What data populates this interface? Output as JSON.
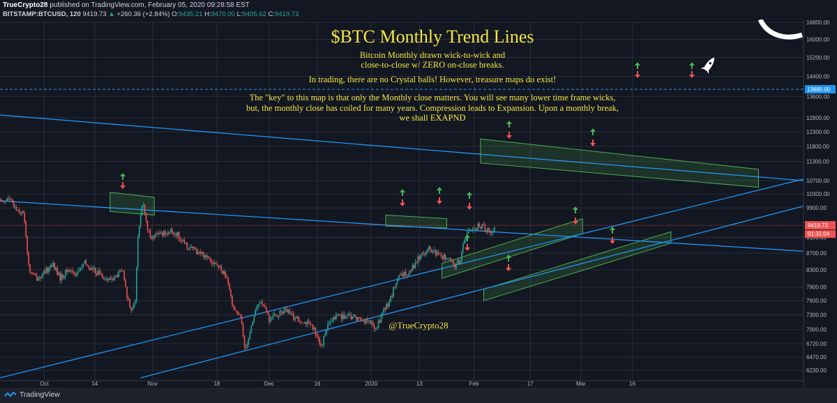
{
  "header": {
    "publisher": "TrueCrypto28",
    "published_text": "published on TradingView.com, February 05, 2020 09:28:58 EST",
    "symbol": "BITSTAMP:BTCUSD, 120",
    "last": "9419.73",
    "change": "+260.36 (+2.84%)",
    "o_label": "O:",
    "o_value": "9435.21",
    "h_label": "H:",
    "h_value": "9470.00",
    "l_label": "L:",
    "l_value": "9405.62",
    "c_label": "C:",
    "c_value": "9419.73"
  },
  "annotations": {
    "title": "$BTC Monthly Trend Lines",
    "line1": "Bitcoin Monthly drawn wick-to-wick and",
    "line2": "close-to-close w/ ZERO on-close breaks.",
    "line3": "In trading, there are no Crystal balls! However, treasure maps do exist!",
    "line4": "The \"key\" to this map is that only the Monthly close matters. You will see many lower time frame wicks,",
    "line5": "but, the monthly close has coiled for many years. Compression leads to Expansion. Upon a monthly break,",
    "line6": "we shall EXAPND",
    "handle": "@TrueCrypto28"
  },
  "footer": {
    "brand": "TradingView"
  },
  "colors": {
    "background": "#131722",
    "up": "#26a69a",
    "down": "#ef5350",
    "trendline": "#2196f3",
    "annotation": "#f4e640",
    "box": "#4caf50",
    "hline": "#2196f3"
  },
  "chart_data": {
    "type": "candlestick",
    "title": "$BTC Monthly Trend Lines",
    "y_ticks": [
      16800,
      16000,
      15200,
      14400,
      13600,
      12800,
      12300,
      11800,
      11300,
      10700,
      10300,
      9900,
      9100,
      8700,
      8300,
      7900,
      7600,
      7300,
      7000,
      6720,
      6470,
      6230
    ],
    "ylim": [
      6050,
      16800
    ],
    "scale": "log",
    "x_ticks": [
      {
        "label": "Oct",
        "t": 0.055
      },
      {
        "label": "14",
        "t": 0.118
      },
      {
        "label": "Nov",
        "t": 0.19
      },
      {
        "label": "18",
        "t": 0.27
      },
      {
        "label": "Dec",
        "t": 0.335
      },
      {
        "label": "16",
        "t": 0.395
      },
      {
        "label": "2020",
        "t": 0.462
      },
      {
        "label": "13",
        "t": 0.522
      },
      {
        "label": "Feb",
        "t": 0.59
      },
      {
        "label": "17",
        "t": 0.66
      },
      {
        "label": "Mar",
        "t": 0.723
      },
      {
        "label": "16",
        "t": 0.787
      }
    ],
    "current_price": 9419.73,
    "countdown": "01:31:04",
    "horizontal_line": 13880.0,
    "price_path": [
      [
        0.0,
        10100
      ],
      [
        0.01,
        10150
      ],
      [
        0.02,
        9900
      ],
      [
        0.03,
        9700
      ],
      [
        0.036,
        8300
      ],
      [
        0.045,
        8100
      ],
      [
        0.055,
        8200
      ],
      [
        0.065,
        8450
      ],
      [
        0.075,
        8100
      ],
      [
        0.085,
        8300
      ],
      [
        0.095,
        8200
      ],
      [
        0.105,
        8450
      ],
      [
        0.115,
        8300
      ],
      [
        0.125,
        8200
      ],
      [
        0.135,
        8050
      ],
      [
        0.145,
        8150
      ],
      [
        0.152,
        8300
      ],
      [
        0.158,
        7700
      ],
      [
        0.163,
        7450
      ],
      [
        0.168,
        7500
      ],
      [
        0.172,
        9200
      ],
      [
        0.178,
        10100
      ],
      [
        0.183,
        9300
      ],
      [
        0.19,
        9100
      ],
      [
        0.2,
        9200
      ],
      [
        0.21,
        9250
      ],
      [
        0.22,
        9200
      ],
      [
        0.23,
        8900
      ],
      [
        0.24,
        8800
      ],
      [
        0.25,
        8700
      ],
      [
        0.26,
        8600
      ],
      [
        0.27,
        8400
      ],
      [
        0.28,
        8200
      ],
      [
        0.29,
        7500
      ],
      [
        0.3,
        7200
      ],
      [
        0.305,
        6600
      ],
      [
        0.31,
        6900
      ],
      [
        0.318,
        7400
      ],
      [
        0.325,
        7600
      ],
      [
        0.335,
        7200
      ],
      [
        0.345,
        7300
      ],
      [
        0.355,
        7400
      ],
      [
        0.365,
        7250
      ],
      [
        0.375,
        7200
      ],
      [
        0.385,
        7100
      ],
      [
        0.395,
        6900
      ],
      [
        0.4,
        6600
      ],
      [
        0.405,
        7000
      ],
      [
        0.412,
        7150
      ],
      [
        0.42,
        7300
      ],
      [
        0.43,
        7250
      ],
      [
        0.44,
        7250
      ],
      [
        0.45,
        7200
      ],
      [
        0.46,
        7150
      ],
      [
        0.468,
        7000
      ],
      [
        0.475,
        7300
      ],
      [
        0.485,
        7600
      ],
      [
        0.495,
        8100
      ],
      [
        0.505,
        8200
      ],
      [
        0.515,
        8400
      ],
      [
        0.525,
        8700
      ],
      [
        0.535,
        8800
      ],
      [
        0.545,
        8650
      ],
      [
        0.555,
        8600
      ],
      [
        0.565,
        8400
      ],
      [
        0.572,
        8500
      ],
      [
        0.58,
        9200
      ],
      [
        0.59,
        9350
      ],
      [
        0.6,
        9400
      ],
      [
        0.607,
        9300
      ],
      [
        0.612,
        9200
      ],
      [
        0.617,
        9420
      ]
    ],
    "trend_lines": [
      {
        "name": "upper-descending",
        "p1": [
          0.0,
          12900
        ],
        "p2": [
          1.0,
          10700
        ]
      },
      {
        "name": "middle-descending",
        "p1": [
          0.0,
          10100
        ],
        "p2": [
          1.0,
          8750
        ]
      },
      {
        "name": "upper-ascending",
        "p1": [
          0.0,
          6100
        ],
        "p2": [
          1.0,
          10750
        ]
      },
      {
        "name": "lower-ascending",
        "p1": [
          0.175,
          6100
        ],
        "p2": [
          1.0,
          9950
        ]
      }
    ],
    "zones": [
      {
        "t1": 0.165,
        "t2": 0.23,
        "y": 10000,
        "h": [
          9650,
          10300
        ]
      },
      {
        "t1": 0.58,
        "t2": 0.67,
        "yc": 9600
      },
      {
        "t1": 0.72,
        "t2": 0.98,
        "y": 11600
      },
      {
        "t1": 0.67,
        "t2": 0.87,
        "y": 8650
      },
      {
        "t1": 0.73,
        "t2": 1.0,
        "y": 8050
      }
    ]
  }
}
